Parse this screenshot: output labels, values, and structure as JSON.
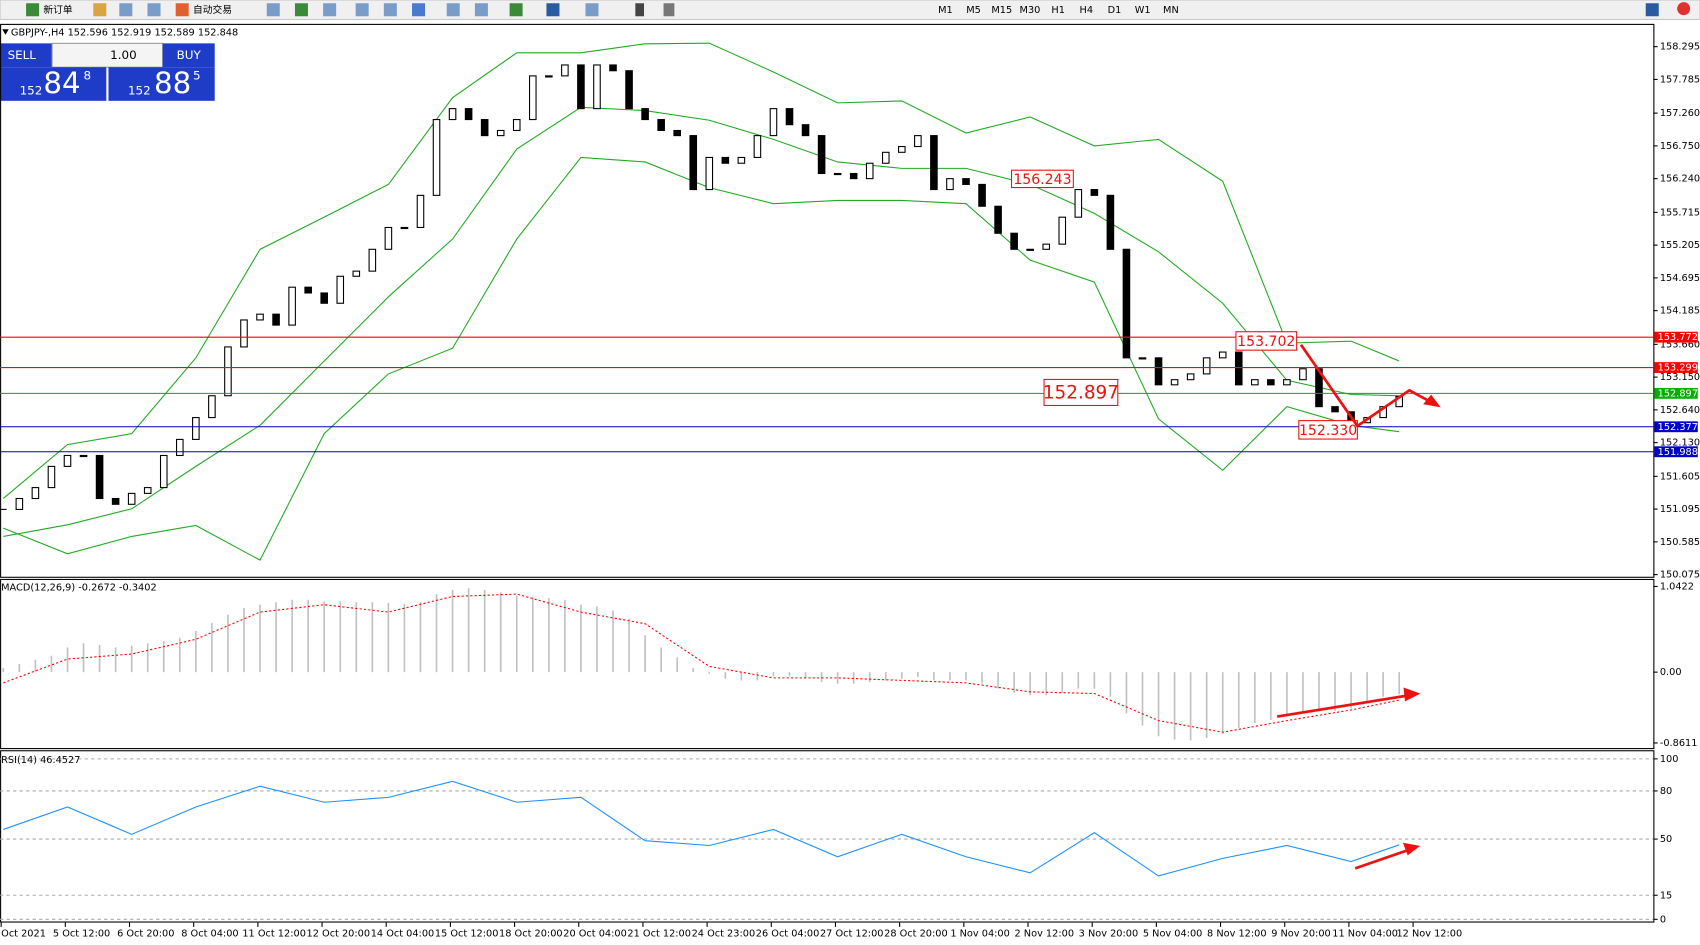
{
  "toolbar": {
    "new_order": "新订单",
    "auto_trading": "自动交易",
    "timeframes": [
      "M1",
      "M5",
      "M15",
      "M30",
      "H1",
      "H4",
      "D1",
      "W1",
      "MN"
    ]
  },
  "trade_panel": {
    "sell": "SELL",
    "buy": "BUY",
    "lot": "1.00",
    "bid_prefix": "152",
    "bid_big": "84",
    "bid_small": "8",
    "ask_prefix": "152",
    "ask_big": "88",
    "ask_small": "5"
  },
  "time_labels": [
    "Oct 2021",
    "5 Oct 12:00",
    "6 Oct 20:00",
    "8 Oct 04:00",
    "11 Oct 12:00",
    "12 Oct 20:00",
    "14 Oct 04:00",
    "15 Oct 12:00",
    "18 Oct 20:00",
    "20 Oct 04:00",
    "21 Oct 12:00",
    "24 Oct 23:00",
    "26 Oct 04:00",
    "27 Oct 12:00",
    "28 Oct 20:00",
    "1 Nov 04:00",
    "2 Nov 12:00",
    "3 Nov 20:00",
    "5 Nov 04:00",
    "8 Nov 12:00",
    "9 Nov 20:00",
    "11 Nov 04:00",
    "12 Nov 12:00"
  ],
  "chart_data": [
    {
      "type": "candlestick",
      "title": "GBPJPY-,H4  152.596 152.919 152.589 152.848",
      "close": [
        151.09,
        151.26,
        151.43,
        151.76,
        151.93,
        151.93,
        151.26,
        151.17,
        151.34,
        151.43,
        151.93,
        152.18,
        152.52,
        152.86,
        153.62,
        154.04,
        154.13,
        153.96,
        154.55,
        154.46,
        154.3,
        154.72,
        154.8,
        155.14,
        155.48,
        155.48,
        155.98,
        157.16,
        157.33,
        157.16,
        156.91,
        156.99,
        157.16,
        157.84,
        157.84,
        158.01,
        157.33,
        158.01,
        157.92,
        157.33,
        157.16,
        156.99,
        156.91,
        156.07,
        156.57,
        156.48,
        156.57,
        156.91,
        157.33,
        157.08,
        156.91,
        156.32,
        156.32,
        156.24,
        156.48,
        156.65,
        156.74,
        156.91,
        156.07,
        156.24,
        156.15,
        155.81,
        155.39,
        155.14,
        155.14,
        155.22,
        155.64,
        156.07,
        155.98,
        155.14,
        153.45,
        153.45,
        153.03,
        153.11,
        153.2,
        153.45,
        153.54,
        153.03,
        153.11,
        153.03,
        153.11,
        153.28,
        152.69,
        152.61,
        152.44,
        152.52,
        152.69,
        152.848
      ],
      "band_x": [
        0,
        4,
        8,
        12,
        16,
        20,
        24,
        28,
        32,
        36,
        40,
        44,
        48,
        52,
        56,
        60,
        64,
        68,
        72,
        76,
        80,
        84,
        87
      ],
      "bands": [
        {
          "color": "#22aa22",
          "values": [
            151.26,
            152.1,
            152.27,
            153.45,
            155.14,
            155.64,
            156.15,
            157.5,
            158.2,
            158.2,
            158.34,
            158.35,
            157.9,
            157.42,
            157.45,
            156.95,
            157.2,
            156.75,
            156.85,
            156.2,
            153.68,
            153.71,
            153.4
          ]
        },
        {
          "color": "#22aa22",
          "values": [
            150.67,
            150.85,
            151.1,
            151.76,
            152.4,
            153.4,
            154.4,
            155.3,
            156.7,
            157.35,
            157.3,
            157.15,
            156.85,
            156.5,
            156.4,
            156.4,
            156.15,
            155.7,
            155.1,
            154.3,
            153.1,
            152.88,
            152.86
          ]
        },
        {
          "color": "#22aa22",
          "values": [
            150.8,
            150.4,
            150.67,
            150.84,
            150.3,
            152.27,
            153.2,
            153.6,
            155.3,
            156.57,
            156.5,
            156.1,
            155.85,
            155.9,
            155.9,
            155.85,
            154.97,
            154.63,
            152.5,
            151.7,
            152.69,
            152.4,
            152.3
          ]
        }
      ],
      "levels": [
        {
          "value": 153.772,
          "color": "#ff0000"
        },
        {
          "value": 153.299,
          "color": "#ff0000"
        },
        {
          "value": 152.897,
          "color": "#00b000"
        },
        {
          "value": 152.377,
          "color": "#0000cc"
        },
        {
          "value": 151.988,
          "color": "#0000cc"
        }
      ],
      "annotations": [
        "156.243",
        "153.702",
        "152.897",
        "152.330"
      ],
      "ylim": [
        150.042,
        158.65
      ],
      "yticks": [
        158.295,
        157.785,
        {
          "value": 157.26,
          "label": "157.260"
        },
        {
          "value": 156.75,
          "label": "156.750"
        },
        {
          "value": 156.24,
          "label": "156.240"
        },
        155.715,
        155.205,
        154.695,
        154.185,
        {
          "value": 153.66,
          "label": "153.660"
        },
        {
          "value": 153.15,
          "label": "153.150"
        },
        {
          "value": 152.64,
          "label": "152.640"
        },
        {
          "value": 152.13,
          "label": "152.130"
        },
        151.605,
        151.095,
        150.585,
        150.075
      ]
    },
    {
      "type": "macd",
      "title": "MACD(12,26,9) -0.2672 -0.3402",
      "histogram": [
        0.05,
        0.1,
        0.15,
        0.2,
        0.3,
        0.35,
        0.33,
        0.3,
        0.32,
        0.35,
        0.38,
        0.42,
        0.5,
        0.6,
        0.7,
        0.78,
        0.82,
        0.85,
        0.88,
        0.88,
        0.86,
        0.86,
        0.85,
        0.85,
        0.84,
        0.83,
        0.85,
        0.95,
        1.0,
        1.02,
        1.0,
        0.97,
        0.93,
        0.92,
        0.9,
        0.88,
        0.82,
        0.8,
        0.75,
        0.65,
        0.45,
        0.3,
        0.18,
        0.05,
        -0.02,
        -0.08,
        -0.1,
        -0.1,
        -0.05,
        -0.05,
        -0.08,
        -0.12,
        -0.14,
        -0.14,
        -0.12,
        -0.1,
        -0.08,
        -0.06,
        -0.1,
        -0.1,
        -0.1,
        -0.14,
        -0.2,
        -0.25,
        -0.28,
        -0.28,
        -0.25,
        -0.2,
        -0.2,
        -0.3,
        -0.5,
        -0.65,
        -0.78,
        -0.82,
        -0.83,
        -0.8,
        -0.75,
        -0.68,
        -0.62,
        -0.58,
        -0.52,
        -0.5,
        -0.48,
        -0.47,
        -0.44,
        -0.38,
        -0.3,
        -0.27
      ],
      "signal_x": [
        0,
        4,
        8,
        12,
        16,
        20,
        24,
        28,
        32,
        36,
        40,
        44,
        48,
        52,
        56,
        60,
        64,
        68,
        72,
        76,
        80,
        84,
        87
      ],
      "signal": [
        -0.13,
        0.16,
        0.22,
        0.4,
        0.73,
        0.82,
        0.73,
        0.92,
        0.95,
        0.73,
        0.59,
        0.07,
        -0.07,
        -0.07,
        -0.1,
        -0.13,
        -0.24,
        -0.26,
        -0.59,
        -0.73,
        -0.59,
        -0.46,
        -0.34
      ],
      "signal_color": "#ff0000",
      "histogram_color": "#c0c0c0",
      "ylim": [
        -0.923,
        1.134
      ],
      "yticks": [
        1.0422,
        {
          "value": 0,
          "label": "0.00"
        },
        -0.8611
      ]
    },
    {
      "type": "line",
      "title": "RSI(14) 46.4527",
      "x": [
        0,
        4,
        8,
        12,
        16,
        20,
        24,
        28,
        32,
        36,
        40,
        44,
        48,
        52,
        56,
        60,
        64,
        68,
        72,
        76,
        80,
        84,
        87
      ],
      "values": [
        56,
        70,
        53,
        70,
        83,
        73,
        76,
        86,
        73,
        76,
        49,
        46,
        56,
        39,
        53,
        39,
        29,
        54,
        27,
        38,
        46,
        36,
        46.45
      ],
      "color": "#1e90ff",
      "grid": true,
      "ylim": [
        -1.35,
        105.4
      ],
      "yticks": [
        100,
        80,
        50,
        15,
        0
      ]
    }
  ]
}
